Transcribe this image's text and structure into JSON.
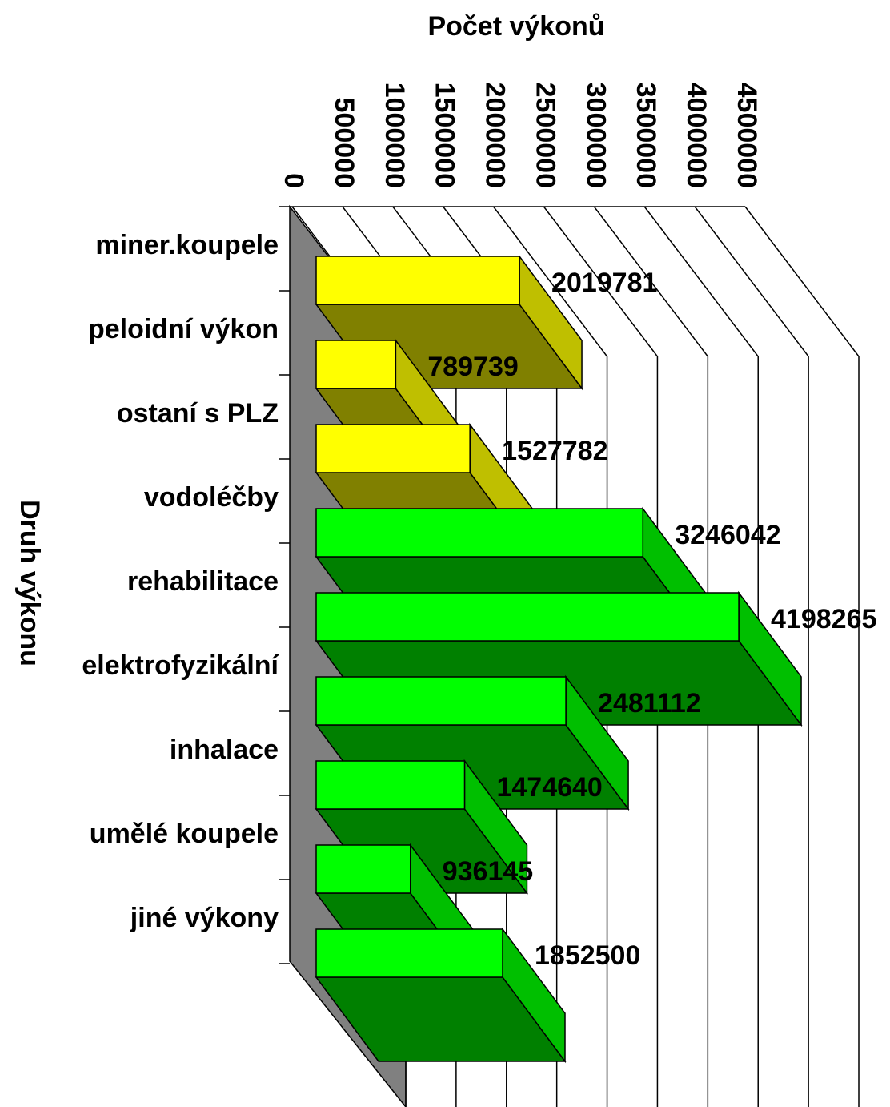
{
  "chart_data": {
    "type": "bar3d",
    "orientation": "horizontal",
    "xlabel": "Počet výkonů",
    "ylabel": "Druh výkonu",
    "categories": [
      "miner.koupele",
      "peloidní výkon",
      "ostaní s PLZ",
      "vodoléčby",
      "rehabilitace",
      "elektrofyzikální",
      "inhalace",
      "umělé koupele",
      "jiné výkony"
    ],
    "values": [
      2019781,
      789739,
      1527782,
      3246042,
      4198265,
      2481112,
      1474640,
      936145,
      1852500
    ],
    "colors": [
      "#ffff00",
      "#ffff00",
      "#ffff00",
      "#00ff00",
      "#00ff00",
      "#00ff00",
      "#00ff00",
      "#00ff00",
      "#00ff00"
    ],
    "xlim": [
      0,
      4500000
    ],
    "xticks": [
      0,
      500000,
      1000000,
      1500000,
      2000000,
      2500000,
      3000000,
      3500000,
      4000000,
      4500000
    ],
    "grid": true
  }
}
